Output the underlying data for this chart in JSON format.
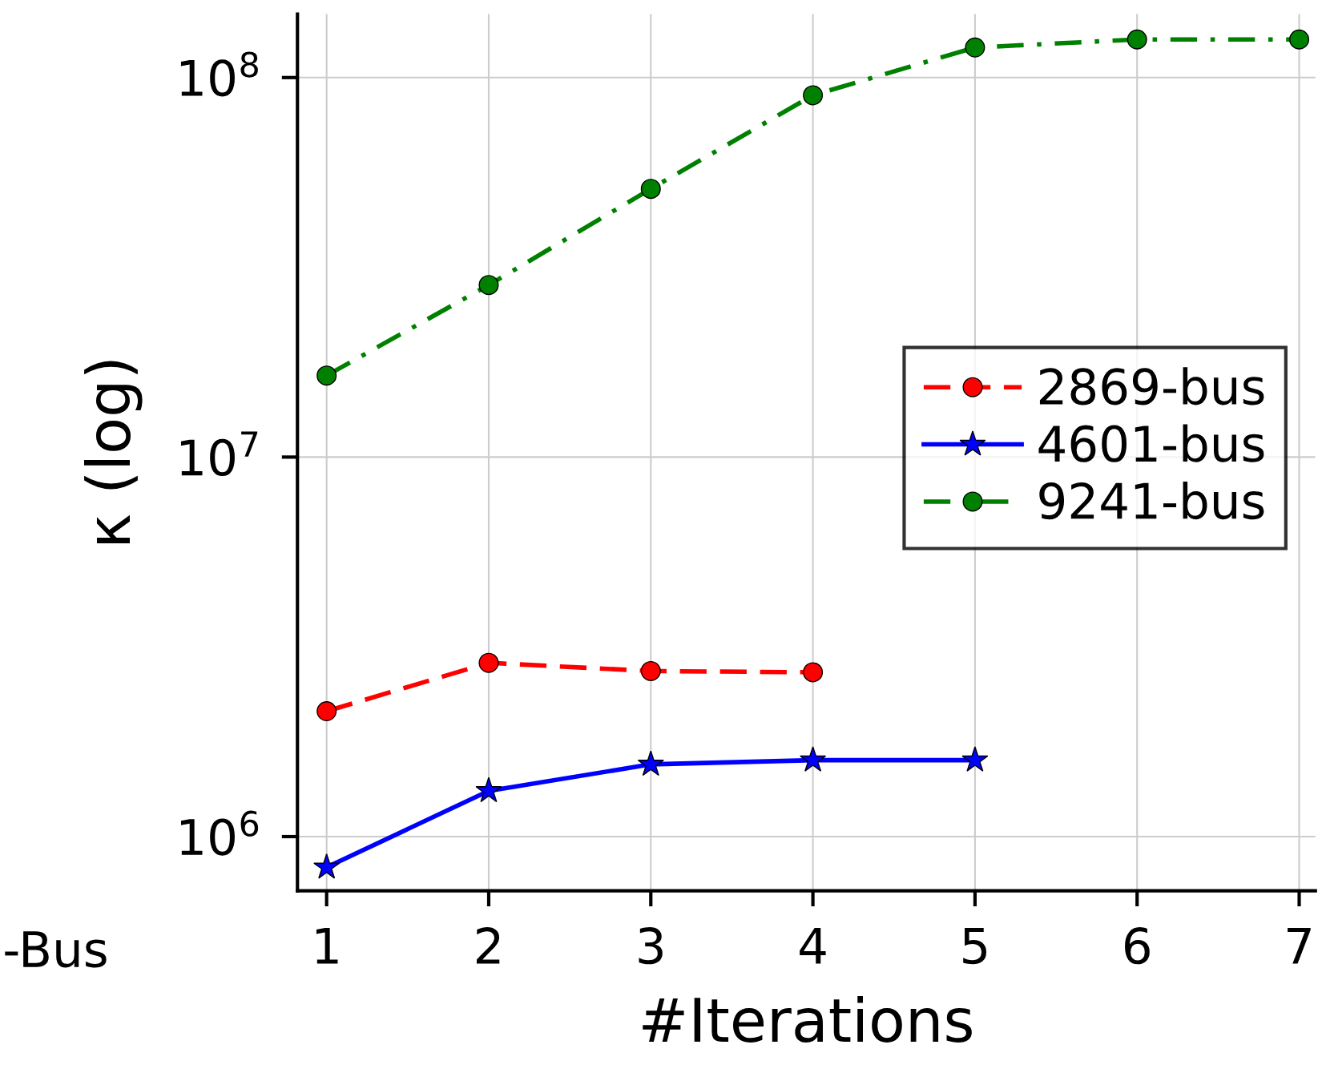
{
  "chart_data": {
    "type": "line",
    "xlabel": "#Iterations",
    "ylabel": "κ (log)",
    "log": "y",
    "grid": true,
    "legend": "right",
    "xlim": [
      0.82,
      7.1
    ],
    "xticks": [
      1,
      2,
      3,
      4,
      5,
      6,
      7
    ],
    "ylim": [
      720000,
      147000000
    ],
    "yticks": [
      {
        "value": 1000000,
        "label": "10$^{6}$"
      },
      {
        "value": 10000000,
        "label": "10$^{7}$"
      },
      {
        "value": 100000000,
        "label": "10$^{8}$"
      }
    ],
    "annotations": [
      "-Bus"
    ],
    "series": [
      {
        "name": "2869-bus",
        "color": "#ff0000",
        "marker": "circle",
        "line_style": "dashed",
        "x": [
          1,
          2,
          3,
          4
        ],
        "values": [
          2140000,
          2870000,
          2730000,
          2710000
        ]
      },
      {
        "name": "4601-bus",
        "color": "#0000ff",
        "marker": "star",
        "line_style": "solid",
        "x": [
          1,
          2,
          3,
          4,
          5
        ],
        "values": [
          830000,
          1320000,
          1550000,
          1590000,
          1590000
        ]
      },
      {
        "name": "9241-bus",
        "color": "#008000",
        "marker": "circle",
        "line_style": "dashdot",
        "x": [
          1,
          2,
          3,
          4,
          5,
          6,
          7
        ],
        "values": [
          16400000,
          28400000,
          50900000,
          89800000,
          120000000,
          126000000,
          126000000
        ]
      }
    ]
  }
}
